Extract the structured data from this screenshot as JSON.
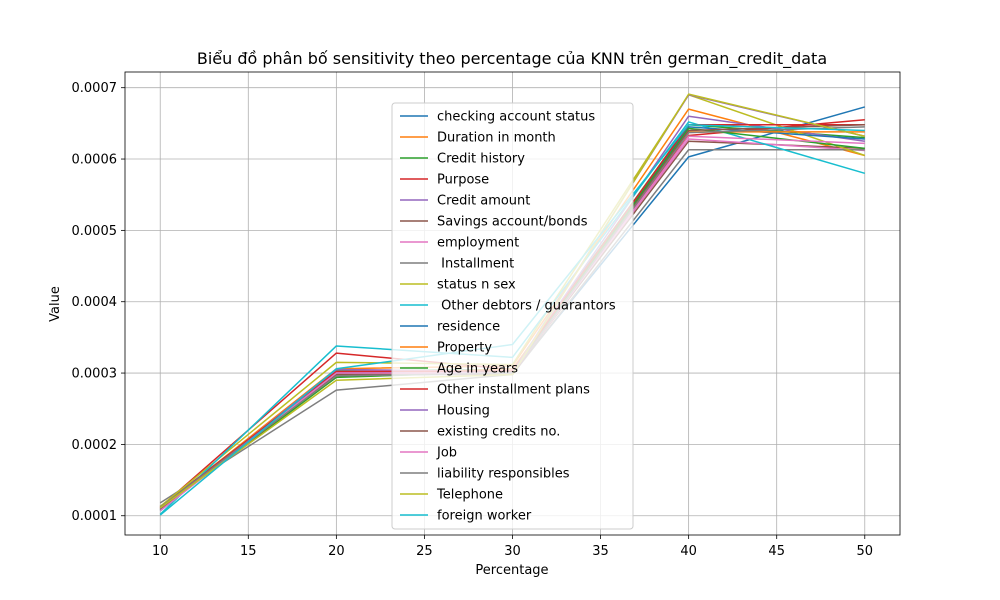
{
  "chart_data": {
    "type": "line",
    "title": "Biểu đồ phân bố sensitivity theo percentage của KNN trên german_credit_data",
    "xlabel": "Percentage",
    "ylabel": "Value",
    "x": [
      10,
      20,
      30,
      40,
      50
    ],
    "xticks": [
      10,
      15,
      20,
      25,
      30,
      35,
      40,
      45,
      50
    ],
    "yticks": [
      0.0001,
      0.0002,
      0.0003,
      0.0004,
      0.0005,
      0.0006,
      0.0007
    ],
    "ytick_labels": [
      "0.0001",
      "0.0002",
      "0.0003",
      "0.0004",
      "0.0005",
      "0.0006",
      "0.0007"
    ],
    "xlim": [
      8,
      52
    ],
    "ylim": [
      7.3e-05,
      0.000722
    ],
    "grid": true,
    "legend_position": "upper-center",
    "series": [
      {
        "name": "checking account status",
        "color": "#1f77b4",
        "values": [
          0.000107,
          0.000305,
          0.0003,
          0.000603,
          0.000673
        ]
      },
      {
        "name": "Duration in month",
        "color": "#ff7f0e",
        "values": [
          0.000111,
          0.000306,
          0.00031,
          0.00067,
          0.000605
        ]
      },
      {
        "name": "Credit history",
        "color": "#2ca02c",
        "values": [
          0.000108,
          0.000303,
          0.000305,
          0.000648,
          0.00063
        ]
      },
      {
        "name": "Purpose",
        "color": "#d62728",
        "values": [
          0.000112,
          0.000328,
          0.000305,
          0.000633,
          0.000655
        ]
      },
      {
        "name": "Credit amount",
        "color": "#9467bd",
        "values": [
          0.000108,
          0.000305,
          0.000302,
          0.00066,
          0.000625
        ]
      },
      {
        "name": "Savings account/bonds",
        "color": "#8c564b",
        "values": [
          0.000113,
          0.0003,
          0.0003,
          0.000625,
          0.000615
        ]
      },
      {
        "name": "employment",
        "color": "#e377c2",
        "values": [
          0.000109,
          0.000302,
          0.000304,
          0.000628,
          0.000612
        ]
      },
      {
        "name": " Installment",
        "color": "#7f7f7f",
        "values": [
          0.000118,
          0.000276,
          0.000298,
          0.000613,
          0.000613
        ]
      },
      {
        "name": "status n sex",
        "color": "#bcbd22",
        "values": [
          0.000113,
          0.000315,
          0.000312,
          0.00069,
          0.000605
        ]
      },
      {
        "name": " Other debtors / guarantors",
        "color": "#17becf",
        "values": [
          0.000102,
          0.000338,
          0.000322,
          0.000652,
          0.00058
        ]
      },
      {
        "name": "residence",
        "color": "#1f77b4",
        "values": [
          0.00011,
          0.0003,
          0.000302,
          0.000645,
          0.000628
        ]
      },
      {
        "name": "Property",
        "color": "#ff7f0e",
        "values": [
          0.00011,
          0.000296,
          0.000306,
          0.000638,
          0.000638
        ]
      },
      {
        "name": "Age in years",
        "color": "#2ca02c",
        "values": [
          0.000109,
          0.000294,
          0.000302,
          0.000643,
          0.000615
        ]
      },
      {
        "name": "Other installment plans",
        "color": "#d62728",
        "values": [
          0.000111,
          0.000302,
          0.000303,
          0.000648,
          0.000648
        ]
      },
      {
        "name": "Housing",
        "color": "#9467bd",
        "values": [
          0.00011,
          0.0003,
          0.0003,
          0.00069,
          0.000632
        ]
      },
      {
        "name": "existing credits no.",
        "color": "#8c564b",
        "values": [
          0.000108,
          0.000298,
          0.000298,
          0.00064,
          0.000648
        ]
      },
      {
        "name": "Job",
        "color": "#e377c2",
        "values": [
          0.000107,
          0.0003,
          0.0003,
          0.000632,
          0.000622
        ]
      },
      {
        "name": "liability responsibles",
        "color": "#7f7f7f",
        "values": [
          0.000112,
          0.000296,
          0.0003,
          0.000637,
          0.000645
        ]
      },
      {
        "name": "Telephone",
        "color": "#bcbd22",
        "values": [
          0.000111,
          0.00029,
          0.000298,
          0.000691,
          0.000632
        ]
      },
      {
        "name": "foreign worker",
        "color": "#17becf",
        "values": [
          0.000101,
          0.000306,
          0.00034,
          0.000648,
          0.00064
        ]
      }
    ]
  }
}
